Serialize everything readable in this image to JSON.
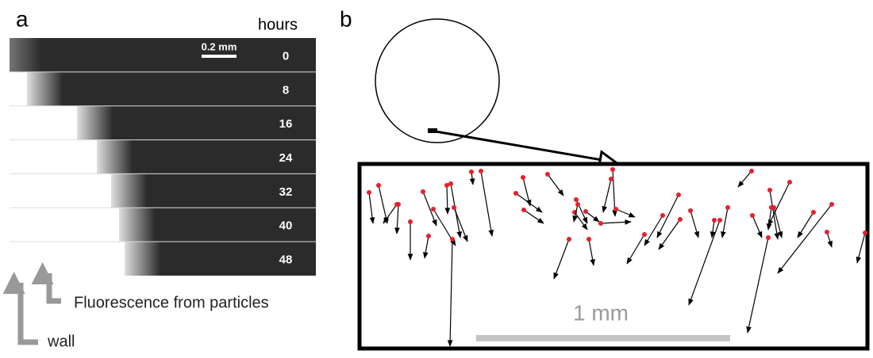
{
  "panel_a": {
    "label": "a",
    "hours_header": "hours",
    "scale_bar": "0.2 mm",
    "times": [
      0,
      8,
      16,
      24,
      32,
      40,
      48
    ],
    "annotations": {
      "particles": "Fluorescence from particles",
      "wall": "wall"
    }
  },
  "panel_b": {
    "label": "b",
    "scale_bar": "1 mm"
  }
}
